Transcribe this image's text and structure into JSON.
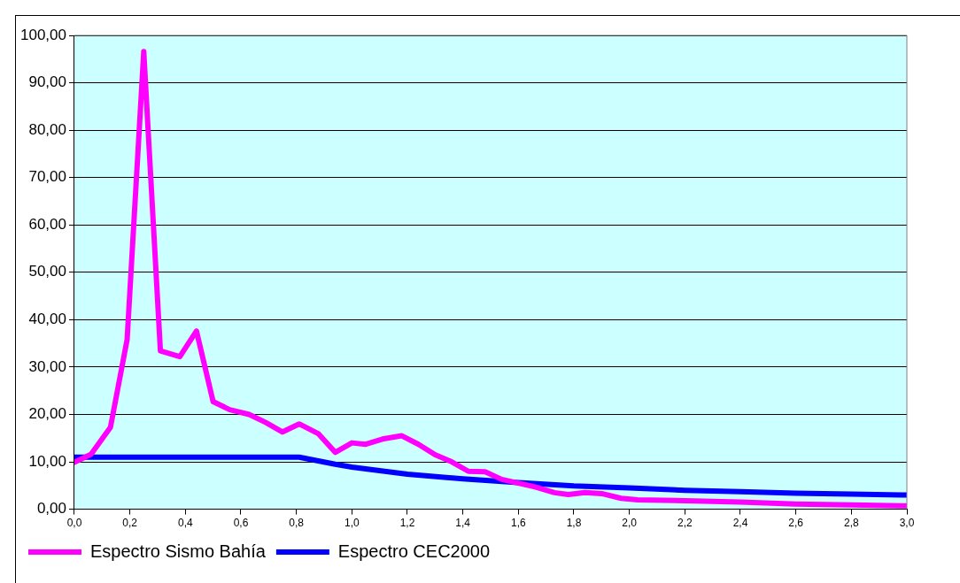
{
  "chart_data": {
    "type": "line",
    "xlim": [
      0,
      3
    ],
    "xticks": [
      {
        "value": 0,
        "label": "0,0"
      },
      {
        "value": 0.2,
        "label": "0,2"
      },
      {
        "value": 0.4,
        "label": "0,4"
      },
      {
        "value": 0.6,
        "label": "0,6"
      },
      {
        "value": 0.8,
        "label": "0,8"
      },
      {
        "value": 1,
        "label": "1,0"
      },
      {
        "value": 1.2,
        "label": "1,2"
      },
      {
        "value": 1.4,
        "label": "1,4"
      },
      {
        "value": 1.6,
        "label": "1,6"
      },
      {
        "value": 1.8,
        "label": "1,8"
      },
      {
        "value": 2,
        "label": "2,0"
      },
      {
        "value": 2.2,
        "label": "2,2"
      },
      {
        "value": 2.4,
        "label": "2,4"
      },
      {
        "value": 2.6,
        "label": "2,6"
      },
      {
        "value": 2.8,
        "label": "2,8"
      },
      {
        "value": 3,
        "label": "3,0"
      }
    ],
    "ylim": [
      0,
      100
    ],
    "yticks": [
      {
        "value": 0,
        "label": "0,00"
      },
      {
        "value": 10,
        "label": "10,00"
      },
      {
        "value": 20,
        "label": "20,00"
      },
      {
        "value": 30,
        "label": "30,00"
      },
      {
        "value": 40,
        "label": "40,00"
      },
      {
        "value": 50,
        "label": "50,00"
      },
      {
        "value": 60,
        "label": "60,00"
      },
      {
        "value": 70,
        "label": "70,00"
      },
      {
        "value": 80,
        "label": "80,00"
      },
      {
        "value": 90,
        "label": "90,00"
      },
      {
        "value": 100,
        "label": "100,00"
      }
    ],
    "grid": "y",
    "legend": "bottom",
    "marker": "none",
    "line_style": "solid",
    "series": [
      {
        "name": "Espectro Sismo Bahía",
        "color": "#ff00ff",
        "x": [
          0,
          0.06,
          0.13,
          0.19,
          0.25,
          0.31,
          0.38,
          0.44,
          0.5,
          0.56,
          0.63,
          0.69,
          0.75,
          0.81,
          0.88,
          0.94,
          1.0,
          1.05,
          1.11,
          1.18,
          1.24,
          1.3,
          1.36,
          1.42,
          1.48,
          1.54,
          1.6,
          1.66,
          1.73,
          1.78,
          1.84,
          1.9,
          1.97,
          2.03,
          2.2,
          2.4,
          2.6,
          2.8,
          3.0
        ],
        "values": [
          9.9,
          11.6,
          17.3,
          35.8,
          96.6,
          33.4,
          32.2,
          37.6,
          22.7,
          21.0,
          20.0,
          18.3,
          16.3,
          18.0,
          15.9,
          12.0,
          14.0,
          13.7,
          14.8,
          15.5,
          13.7,
          11.5,
          10.0,
          8.0,
          7.9,
          6.3,
          5.5,
          4.7,
          3.5,
          3.1,
          3.5,
          3.3,
          2.3,
          2.0,
          1.8,
          1.5,
          1.1,
          0.9,
          0.7
        ]
      },
      {
        "name": "Espectro CEC2000",
        "color": "#0000ff",
        "x": [
          0,
          0.81,
          0.94,
          1.0,
          1.2,
          1.4,
          1.6,
          1.8,
          2.0,
          2.2,
          2.4,
          2.6,
          2.8,
          3.0
        ],
        "values": [
          11.0,
          11.0,
          9.5,
          8.9,
          7.4,
          6.4,
          5.6,
          4.9,
          4.5,
          4.0,
          3.7,
          3.4,
          3.2,
          3.0
        ]
      }
    ]
  }
}
